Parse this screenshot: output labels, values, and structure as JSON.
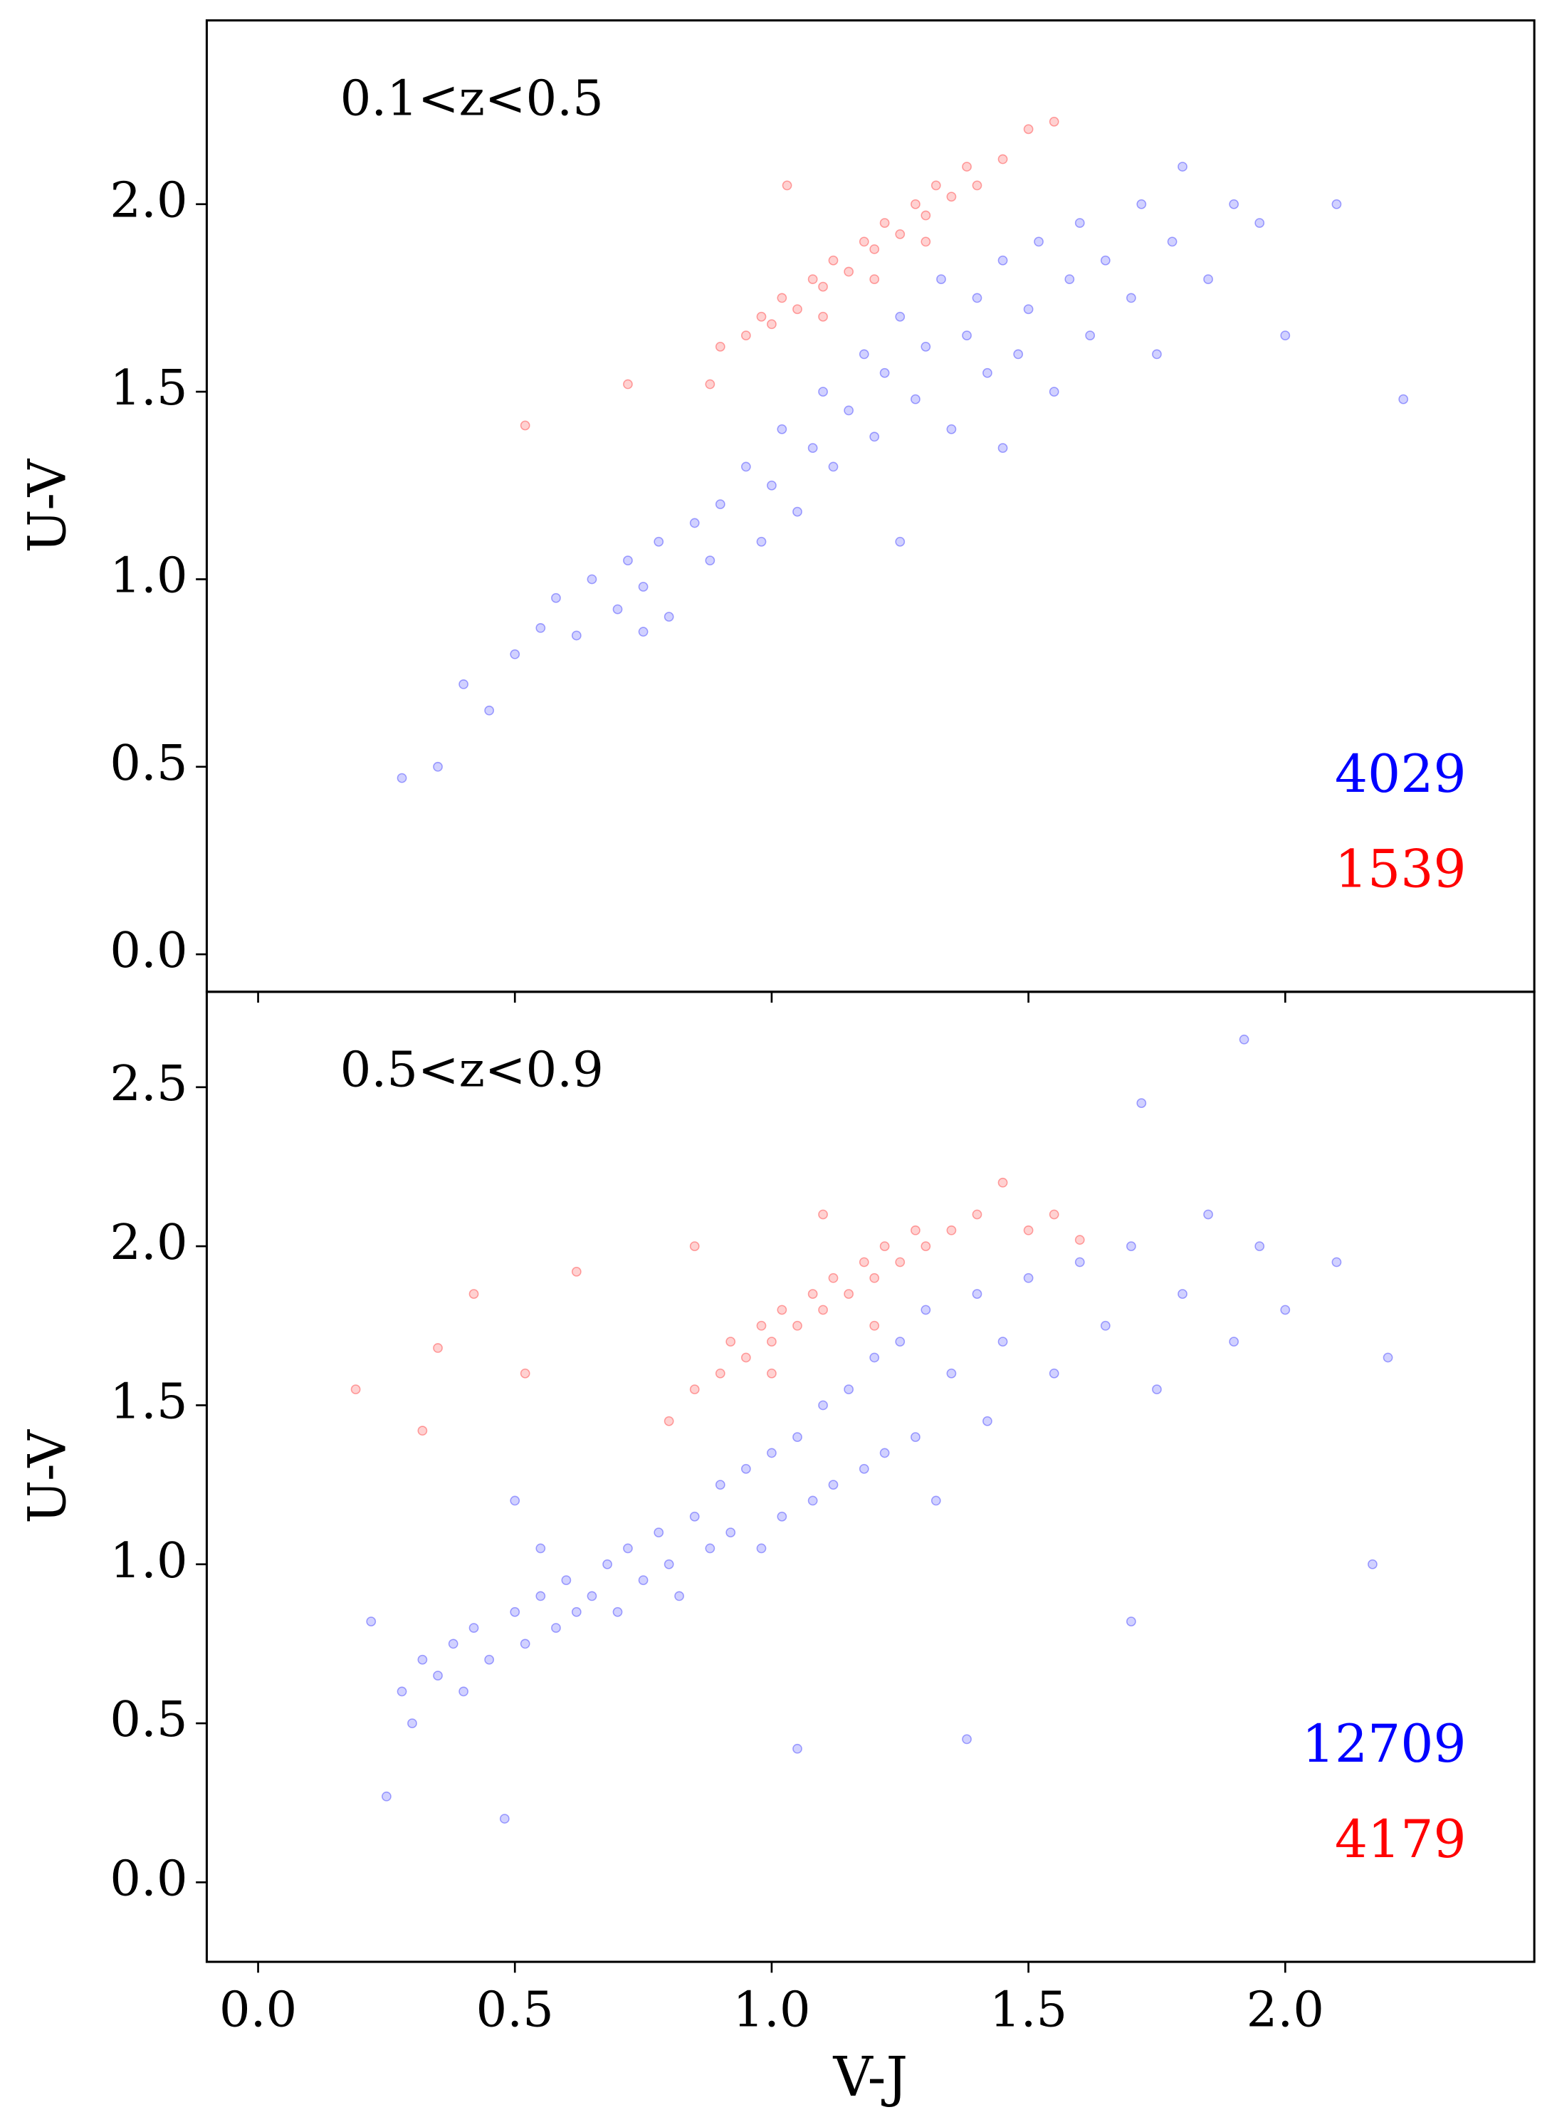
{
  "chart_data": [
    {
      "type": "scatter",
      "title": "0.1<z<0.5",
      "ylabel": "U-V",
      "xlim": [
        -0.1,
        2.485
      ],
      "ylim": [
        -0.1,
        2.49
      ],
      "xticks": [
        {
          "value": 0,
          "label": "0.0"
        },
        0.5,
        {
          "value": 1,
          "label": "1.0"
        },
        1.5,
        {
          "value": 2,
          "label": "2.0"
        }
      ],
      "xtick_labels": false,
      "yticks": [
        {
          "value": 0,
          "label": "0.0"
        },
        0.5,
        {
          "value": 1,
          "label": "1.0"
        },
        1.5,
        {
          "value": 2,
          "label": "2.0"
        }
      ],
      "annotations": [
        {
          "text": "4029",
          "color": "#0000ff"
        },
        {
          "text": "1539",
          "color": "#ff0000"
        }
      ],
      "series": [
        {
          "color": "#0000ff",
          "x": [
            0.28,
            0.35,
            0.4,
            0.45,
            0.5,
            0.55,
            0.58,
            0.62,
            0.65,
            0.7,
            0.72,
            0.75,
            0.78,
            0.8,
            0.85,
            0.88,
            0.9,
            0.95,
            0.98,
            1.0,
            1.02,
            1.05,
            1.08,
            1.1,
            1.12,
            1.15,
            1.18,
            1.2,
            1.22,
            1.25,
            1.28,
            1.3,
            1.33,
            1.35,
            1.38,
            1.4,
            1.42,
            1.45,
            1.48,
            1.5,
            1.52,
            1.55,
            1.58,
            1.6,
            1.62,
            1.65,
            1.7,
            1.72,
            1.75,
            1.78,
            1.8,
            1.85,
            1.9,
            1.95,
            2.0,
            2.1,
            2.23,
            0.75,
            1.25,
            1.45
          ],
          "values": [
            0.47,
            0.5,
            0.72,
            0.65,
            0.8,
            0.87,
            0.95,
            0.85,
            1.0,
            0.92,
            1.05,
            0.98,
            1.1,
            0.9,
            1.15,
            1.05,
            1.2,
            1.3,
            1.1,
            1.25,
            1.4,
            1.18,
            1.35,
            1.5,
            1.3,
            1.45,
            1.6,
            1.38,
            1.55,
            1.7,
            1.48,
            1.62,
            1.8,
            1.4,
            1.65,
            1.75,
            1.55,
            1.85,
            1.6,
            1.72,
            1.9,
            1.5,
            1.8,
            1.95,
            1.65,
            1.85,
            1.75,
            2.0,
            1.6,
            1.9,
            2.1,
            1.8,
            2.0,
            1.95,
            1.65,
            2.0,
            1.48,
            0.86,
            1.1,
            1.35
          ]
        },
        {
          "color": "#ff0000",
          "x": [
            0.52,
            0.88,
            0.9,
            0.95,
            0.98,
            1.0,
            1.02,
            1.05,
            1.08,
            1.1,
            1.12,
            1.15,
            1.18,
            1.2,
            1.22,
            1.25,
            1.28,
            1.3,
            1.32,
            1.35,
            1.38,
            1.4,
            1.45,
            1.5,
            1.55,
            1.1,
            1.2,
            1.3,
            0.72,
            1.03
          ],
          "values": [
            1.41,
            1.52,
            1.62,
            1.65,
            1.7,
            1.68,
            1.75,
            1.72,
            1.8,
            1.78,
            1.85,
            1.82,
            1.9,
            1.88,
            1.95,
            1.92,
            2.0,
            1.97,
            2.05,
            2.02,
            2.1,
            2.05,
            2.12,
            2.2,
            2.22,
            1.7,
            1.8,
            1.9,
            1.52,
            2.05
          ]
        }
      ]
    },
    {
      "type": "scatter",
      "title": "0.5<z<0.9",
      "ylabel": "U-V",
      "xlabel": "V-J",
      "xlim": [
        -0.1,
        2.485
      ],
      "ylim": [
        -0.25,
        2.8
      ],
      "xticks": [
        {
          "value": 0,
          "label": "0.0"
        },
        0.5,
        {
          "value": 1,
          "label": "1.0"
        },
        1.5,
        {
          "value": 2,
          "label": "2.0"
        }
      ],
      "xtick_labels": true,
      "yticks": [
        {
          "value": 0,
          "label": "0.0"
        },
        0.5,
        {
          "value": 1,
          "label": "1.0"
        },
        1.5,
        {
          "value": 2,
          "label": "2.0"
        },
        2.5
      ],
      "annotations": [
        {
          "text": "12709",
          "color": "#0000ff"
        },
        {
          "text": "4179",
          "color": "#ff0000"
        }
      ],
      "series": [
        {
          "color": "#0000ff",
          "x": [
            0.22,
            0.25,
            0.28,
            0.3,
            0.32,
            0.35,
            0.38,
            0.4,
            0.42,
            0.45,
            0.48,
            0.5,
            0.52,
            0.55,
            0.58,
            0.6,
            0.62,
            0.65,
            0.68,
            0.7,
            0.72,
            0.75,
            0.78,
            0.8,
            0.82,
            0.85,
            0.88,
            0.9,
            0.92,
            0.95,
            0.98,
            1.0,
            1.02,
            1.05,
            1.08,
            1.1,
            1.12,
            1.15,
            1.18,
            1.2,
            1.22,
            1.25,
            1.28,
            1.3,
            1.32,
            1.35,
            1.4,
            1.42,
            1.45,
            1.5,
            1.55,
            1.6,
            1.65,
            1.7,
            1.75,
            1.8,
            1.85,
            1.9,
            1.95,
            2.0,
            2.1,
            2.2,
            1.92,
            1.72,
            2.17,
            1.05,
            1.38,
            1.7,
            0.5,
            0.55
          ],
          "values": [
            0.82,
            0.27,
            0.6,
            0.5,
            0.7,
            0.65,
            0.75,
            0.6,
            0.8,
            0.7,
            0.2,
            0.85,
            0.75,
            0.9,
            0.8,
            0.95,
            0.85,
            0.9,
            1.0,
            0.85,
            1.05,
            0.95,
            1.1,
            1.0,
            0.9,
            1.15,
            1.05,
            1.25,
            1.1,
            1.3,
            1.05,
            1.35,
            1.15,
            1.4,
            1.2,
            1.5,
            1.25,
            1.55,
            1.3,
            1.65,
            1.35,
            1.7,
            1.4,
            1.8,
            1.2,
            1.6,
            1.85,
            1.45,
            1.7,
            1.9,
            1.6,
            1.95,
            1.75,
            2.0,
            1.55,
            1.85,
            2.1,
            1.7,
            2.0,
            1.8,
            1.95,
            1.65,
            2.65,
            2.45,
            1.0,
            0.42,
            0.45,
            0.82,
            1.2,
            1.05
          ]
        },
        {
          "color": "#ff0000",
          "x": [
            0.19,
            0.32,
            0.35,
            0.42,
            0.52,
            0.8,
            0.85,
            0.9,
            0.92,
            0.95,
            0.98,
            1.0,
            1.02,
            1.05,
            1.08,
            1.1,
            1.12,
            1.15,
            1.18,
            1.2,
            1.22,
            1.25,
            1.28,
            1.3,
            1.35,
            1.4,
            1.45,
            1.5,
            1.55,
            1.6,
            1.1,
            0.85,
            1.0,
            1.2,
            0.62
          ],
          "values": [
            1.55,
            1.42,
            1.68,
            1.85,
            1.6,
            1.45,
            1.55,
            1.6,
            1.7,
            1.65,
            1.75,
            1.7,
            1.8,
            1.75,
            1.85,
            1.8,
            1.9,
            1.85,
            1.95,
            1.9,
            2.0,
            1.95,
            2.05,
            2.0,
            2.05,
            2.1,
            2.2,
            2.05,
            2.1,
            2.02,
            2.1,
            2.0,
            1.6,
            1.75,
            1.92
          ]
        }
      ]
    }
  ]
}
